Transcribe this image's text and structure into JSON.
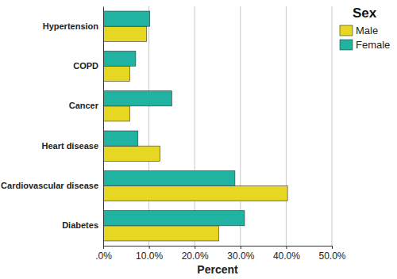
{
  "chart_data": {
    "type": "bar",
    "orientation": "horizontal",
    "categories": [
      "Hypertension",
      "COPD",
      "Cancer",
      "Heart disease",
      "Cardiovascular disease",
      "Diabetes"
    ],
    "series": [
      {
        "name": "Male",
        "color": "#e5d722",
        "values": [
          9.5,
          5.8,
          5.8,
          12.4,
          40.3,
          25.3
        ]
      },
      {
        "name": "Female",
        "color": "#21b3a1",
        "values": [
          10.2,
          7.1,
          15.0,
          7.6,
          28.8,
          30.9
        ]
      }
    ],
    "x_label": "Percent",
    "legend_title": "Sex",
    "xlim": [
      0,
      50
    ],
    "xticks": [
      {
        "value": 0,
        "label": ".0%"
      },
      {
        "value": 10,
        "label": "10.0%"
      },
      {
        "value": 20,
        "label": "20.0%"
      },
      {
        "value": 30,
        "label": "30.0%"
      },
      {
        "value": 40,
        "label": "40.0%"
      },
      {
        "value": 50,
        "label": "50.0%"
      }
    ],
    "grid": true,
    "legend": "upper right"
  }
}
